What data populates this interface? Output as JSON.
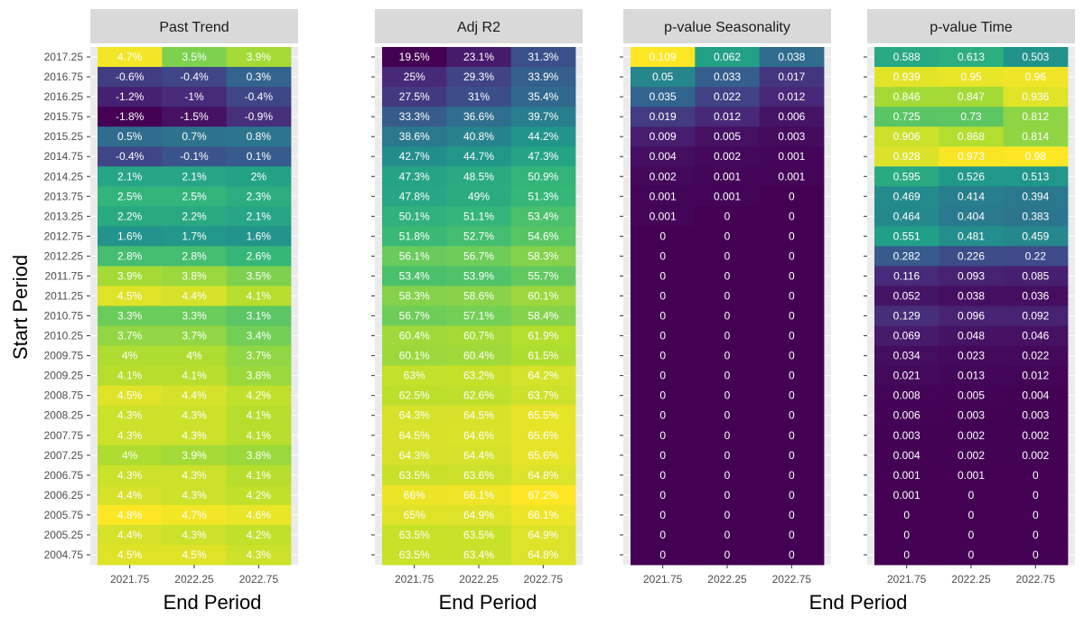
{
  "chart_data": {
    "type": "heatmap",
    "ylabel": "Start Period",
    "xlabel": "End Period",
    "colormap": "viridis",
    "grid": true,
    "legend": "none",
    "start_periods": [
      "2017.25",
      "2016.75",
      "2016.25",
      "2015.75",
      "2015.25",
      "2014.75",
      "2014.25",
      "2013.75",
      "2013.25",
      "2012.75",
      "2012.25",
      "2011.75",
      "2011.25",
      "2010.75",
      "2010.25",
      "2009.75",
      "2009.25",
      "2008.75",
      "2008.25",
      "2007.75",
      "2007.25",
      "2006.75",
      "2006.25",
      "2005.75",
      "2005.25",
      "2004.75"
    ],
    "end_periods": [
      "2021.75",
      "2022.25",
      "2022.75"
    ],
    "panels": [
      {
        "title": "Past Trend",
        "values": [
          [
            4.7,
            3.5,
            3.9
          ],
          [
            -0.6,
            -0.4,
            0.3
          ],
          [
            -1.2,
            -1,
            -0.4
          ],
          [
            -1.8,
            -1.5,
            -0.9
          ],
          [
            0.5,
            0.7,
            0.8
          ],
          [
            -0.4,
            -0.1,
            0.1
          ],
          [
            2.1,
            2.1,
            2
          ],
          [
            2.5,
            2.5,
            2.3
          ],
          [
            2.2,
            2.2,
            2.1
          ],
          [
            1.6,
            1.7,
            1.6
          ],
          [
            2.8,
            2.8,
            2.6
          ],
          [
            3.9,
            3.8,
            3.5
          ],
          [
            4.5,
            4.4,
            4.1
          ],
          [
            3.3,
            3.3,
            3.1
          ],
          [
            3.7,
            3.7,
            3.4
          ],
          [
            4,
            4,
            3.7
          ],
          [
            4.1,
            4.1,
            3.8
          ],
          [
            4.5,
            4.4,
            4.2
          ],
          [
            4.3,
            4.3,
            4.1
          ],
          [
            4.3,
            4.3,
            4.1
          ],
          [
            4,
            3.9,
            3.8
          ],
          [
            4.3,
            4.3,
            4.1
          ],
          [
            4.4,
            4.3,
            4.2
          ],
          [
            4.8,
            4.7,
            4.6
          ],
          [
            4.4,
            4.3,
            4.2
          ],
          [
            4.5,
            4.5,
            4.3
          ]
        ],
        "labels": [
          [
            "4.7%",
            "3.5%",
            "3.9%"
          ],
          [
            "-0.6%",
            "-0.4%",
            "0.3%"
          ],
          [
            "-1.2%",
            "-1%",
            "-0.4%"
          ],
          [
            "-1.8%",
            "-1.5%",
            "-0.9%"
          ],
          [
            "0.5%",
            "0.7%",
            "0.8%"
          ],
          [
            "-0.4%",
            "-0.1%",
            "0.1%"
          ],
          [
            "2.1%",
            "2.1%",
            "2%"
          ],
          [
            "2.5%",
            "2.5%",
            "2.3%"
          ],
          [
            "2.2%",
            "2.2%",
            "2.1%"
          ],
          [
            "1.6%",
            "1.7%",
            "1.6%"
          ],
          [
            "2.8%",
            "2.8%",
            "2.6%"
          ],
          [
            "3.9%",
            "3.8%",
            "3.5%"
          ],
          [
            "4.5%",
            "4.4%",
            "4.1%"
          ],
          [
            "3.3%",
            "3.3%",
            "3.1%"
          ],
          [
            "3.7%",
            "3.7%",
            "3.4%"
          ],
          [
            "4%",
            "4%",
            "3.7%"
          ],
          [
            "4.1%",
            "4.1%",
            "3.8%"
          ],
          [
            "4.5%",
            "4.4%",
            "4.2%"
          ],
          [
            "4.3%",
            "4.3%",
            "4.1%"
          ],
          [
            "4.3%",
            "4.3%",
            "4.1%"
          ],
          [
            "4%",
            "3.9%",
            "3.8%"
          ],
          [
            "4.3%",
            "4.3%",
            "4.1%"
          ],
          [
            "4.4%",
            "4.3%",
            "4.2%"
          ],
          [
            "4.8%",
            "4.7%",
            "4.6%"
          ],
          [
            "4.4%",
            "4.3%",
            "4.2%"
          ],
          [
            "4.5%",
            "4.5%",
            "4.3%"
          ]
        ]
      },
      {
        "title": "Adj R2",
        "values": [
          [
            19.5,
            23.1,
            31.3
          ],
          [
            25,
            29.3,
            33.9
          ],
          [
            27.5,
            31,
            35.4
          ],
          [
            33.3,
            36.6,
            39.7
          ],
          [
            38.6,
            40.8,
            44.2
          ],
          [
            42.7,
            44.7,
            47.3
          ],
          [
            47.3,
            48.5,
            50.9
          ],
          [
            47.8,
            49,
            51.3
          ],
          [
            50.1,
            51.1,
            53.4
          ],
          [
            51.8,
            52.7,
            54.6
          ],
          [
            56.1,
            56.7,
            58.3
          ],
          [
            53.4,
            53.9,
            55.7
          ],
          [
            58.3,
            58.6,
            60.1
          ],
          [
            56.7,
            57.1,
            58.4
          ],
          [
            60.4,
            60.7,
            61.9
          ],
          [
            60.1,
            60.4,
            61.5
          ],
          [
            63,
            63.2,
            64.2
          ],
          [
            62.5,
            62.6,
            63.7
          ],
          [
            64.3,
            64.5,
            65.5
          ],
          [
            64.5,
            64.6,
            65.6
          ],
          [
            64.3,
            64.4,
            65.6
          ],
          [
            63.5,
            63.6,
            64.8
          ],
          [
            66,
            66.1,
            67.2
          ],
          [
            65,
            64.9,
            66.1
          ],
          [
            63.5,
            63.5,
            64.9
          ],
          [
            63.5,
            63.4,
            64.8
          ]
        ],
        "labels": [
          [
            "19.5%",
            "23.1%",
            "31.3%"
          ],
          [
            "25%",
            "29.3%",
            "33.9%"
          ],
          [
            "27.5%",
            "31%",
            "35.4%"
          ],
          [
            "33.3%",
            "36.6%",
            "39.7%"
          ],
          [
            "38.6%",
            "40.8%",
            "44.2%"
          ],
          [
            "42.7%",
            "44.7%",
            "47.3%"
          ],
          [
            "47.3%",
            "48.5%",
            "50.9%"
          ],
          [
            "47.8%",
            "49%",
            "51.3%"
          ],
          [
            "50.1%",
            "51.1%",
            "53.4%"
          ],
          [
            "51.8%",
            "52.7%",
            "54.6%"
          ],
          [
            "56.1%",
            "56.7%",
            "58.3%"
          ],
          [
            "53.4%",
            "53.9%",
            "55.7%"
          ],
          [
            "58.3%",
            "58.6%",
            "60.1%"
          ],
          [
            "56.7%",
            "57.1%",
            "58.4%"
          ],
          [
            "60.4%",
            "60.7%",
            "61.9%"
          ],
          [
            "60.1%",
            "60.4%",
            "61.5%"
          ],
          [
            "63%",
            "63.2%",
            "64.2%"
          ],
          [
            "62.5%",
            "62.6%",
            "63.7%"
          ],
          [
            "64.3%",
            "64.5%",
            "65.5%"
          ],
          [
            "64.5%",
            "64.6%",
            "65.6%"
          ],
          [
            "64.3%",
            "64.4%",
            "65.6%"
          ],
          [
            "63.5%",
            "63.6%",
            "64.8%"
          ],
          [
            "66%",
            "66.1%",
            "67.2%"
          ],
          [
            "65%",
            "64.9%",
            "66.1%"
          ],
          [
            "63.5%",
            "63.5%",
            "64.9%"
          ],
          [
            "63.5%",
            "63.4%",
            "64.8%"
          ]
        ]
      },
      {
        "title": "p-value Seasonality",
        "values": [
          [
            0.109,
            0.062,
            0.038
          ],
          [
            0.05,
            0.033,
            0.017
          ],
          [
            0.035,
            0.022,
            0.012
          ],
          [
            0.019,
            0.012,
            0.006
          ],
          [
            0.009,
            0.005,
            0.003
          ],
          [
            0.004,
            0.002,
            0.001
          ],
          [
            0.002,
            0.001,
            0.001
          ],
          [
            0.001,
            0.001,
            0
          ],
          [
            0.001,
            0,
            0
          ],
          [
            0,
            0,
            0
          ],
          [
            0,
            0,
            0
          ],
          [
            0,
            0,
            0
          ],
          [
            0,
            0,
            0
          ],
          [
            0,
            0,
            0
          ],
          [
            0,
            0,
            0
          ],
          [
            0,
            0,
            0
          ],
          [
            0,
            0,
            0
          ],
          [
            0,
            0,
            0
          ],
          [
            0,
            0,
            0
          ],
          [
            0,
            0,
            0
          ],
          [
            0,
            0,
            0
          ],
          [
            0,
            0,
            0
          ],
          [
            0,
            0,
            0
          ],
          [
            0,
            0,
            0
          ],
          [
            0,
            0,
            0
          ],
          [
            0,
            0,
            0
          ]
        ],
        "labels": [
          [
            "0.109",
            "0.062",
            "0.038"
          ],
          [
            "0.05",
            "0.033",
            "0.017"
          ],
          [
            "0.035",
            "0.022",
            "0.012"
          ],
          [
            "0.019",
            "0.012",
            "0.006"
          ],
          [
            "0.009",
            "0.005",
            "0.003"
          ],
          [
            "0.004",
            "0.002",
            "0.001"
          ],
          [
            "0.002",
            "0.001",
            "0.001"
          ],
          [
            "0.001",
            "0.001",
            "0"
          ],
          [
            "0.001",
            "0",
            "0"
          ],
          [
            "0",
            "0",
            "0"
          ],
          [
            "0",
            "0",
            "0"
          ],
          [
            "0",
            "0",
            "0"
          ],
          [
            "0",
            "0",
            "0"
          ],
          [
            "0",
            "0",
            "0"
          ],
          [
            "0",
            "0",
            "0"
          ],
          [
            "0",
            "0",
            "0"
          ],
          [
            "0",
            "0",
            "0"
          ],
          [
            "0",
            "0",
            "0"
          ],
          [
            "0",
            "0",
            "0"
          ],
          [
            "0",
            "0",
            "0"
          ],
          [
            "0",
            "0",
            "0"
          ],
          [
            "0",
            "0",
            "0"
          ],
          [
            "0",
            "0",
            "0"
          ],
          [
            "0",
            "0",
            "0"
          ],
          [
            "0",
            "0",
            "0"
          ],
          [
            "0",
            "0",
            "0"
          ]
        ]
      },
      {
        "title": "p-value Time",
        "values": [
          [
            0.588,
            0.613,
            0.503
          ],
          [
            0.939,
            0.95,
            0.96
          ],
          [
            0.846,
            0.847,
            0.936
          ],
          [
            0.725,
            0.73,
            0.812
          ],
          [
            0.906,
            0.868,
            0.814
          ],
          [
            0.928,
            0.973,
            0.98
          ],
          [
            0.595,
            0.526,
            0.513
          ],
          [
            0.469,
            0.414,
            0.394
          ],
          [
            0.464,
            0.404,
            0.383
          ],
          [
            0.551,
            0.481,
            0.459
          ],
          [
            0.282,
            0.226,
            0.22
          ],
          [
            0.116,
            0.093,
            0.085
          ],
          [
            0.052,
            0.038,
            0.036
          ],
          [
            0.129,
            0.096,
            0.092
          ],
          [
            0.069,
            0.048,
            0.046
          ],
          [
            0.034,
            0.023,
            0.022
          ],
          [
            0.021,
            0.013,
            0.012
          ],
          [
            0.008,
            0.005,
            0.004
          ],
          [
            0.006,
            0.003,
            0.003
          ],
          [
            0.003,
            0.002,
            0.002
          ],
          [
            0.004,
            0.002,
            0.002
          ],
          [
            0.001,
            0.001,
            0
          ],
          [
            0.001,
            0,
            0
          ],
          [
            0,
            0,
            0
          ],
          [
            0,
            0,
            0
          ],
          [
            0,
            0,
            0
          ]
        ],
        "labels": [
          [
            "0.588",
            "0.613",
            "0.503"
          ],
          [
            "0.939",
            "0.95",
            "0.96"
          ],
          [
            "0.846",
            "0.847",
            "0.936"
          ],
          [
            "0.725",
            "0.73",
            "0.812"
          ],
          [
            "0.906",
            "0.868",
            "0.814"
          ],
          [
            "0.928",
            "0.973",
            "0.98"
          ],
          [
            "0.595",
            "0.526",
            "0.513"
          ],
          [
            "0.469",
            "0.414",
            "0.394"
          ],
          [
            "0.464",
            "0.404",
            "0.383"
          ],
          [
            "0.551",
            "0.481",
            "0.459"
          ],
          [
            "0.282",
            "0.226",
            "0.22"
          ],
          [
            "0.116",
            "0.093",
            "0.085"
          ],
          [
            "0.052",
            "0.038",
            "0.036"
          ],
          [
            "0.129",
            "0.096",
            "0.092"
          ],
          [
            "0.069",
            "0.048",
            "0.046"
          ],
          [
            "0.034",
            "0.023",
            "0.022"
          ],
          [
            "0.021",
            "0.013",
            "0.012"
          ],
          [
            "0.008",
            "0.005",
            "0.004"
          ],
          [
            "0.006",
            "0.003",
            "0.003"
          ],
          [
            "0.003",
            "0.002",
            "0.002"
          ],
          [
            "0.004",
            "0.002",
            "0.002"
          ],
          [
            "0.001",
            "0.001",
            "0"
          ],
          [
            "0.001",
            "0",
            "0"
          ],
          [
            "0",
            "0",
            "0"
          ],
          [
            "0",
            "0",
            "0"
          ],
          [
            "0",
            "0",
            "0"
          ]
        ]
      }
    ]
  },
  "colors": {
    "panel_background": "#ebebeb",
    "strip_background": "#d9d9d9",
    "grid_line": "#ffffff",
    "tick_mark": "#333333"
  }
}
